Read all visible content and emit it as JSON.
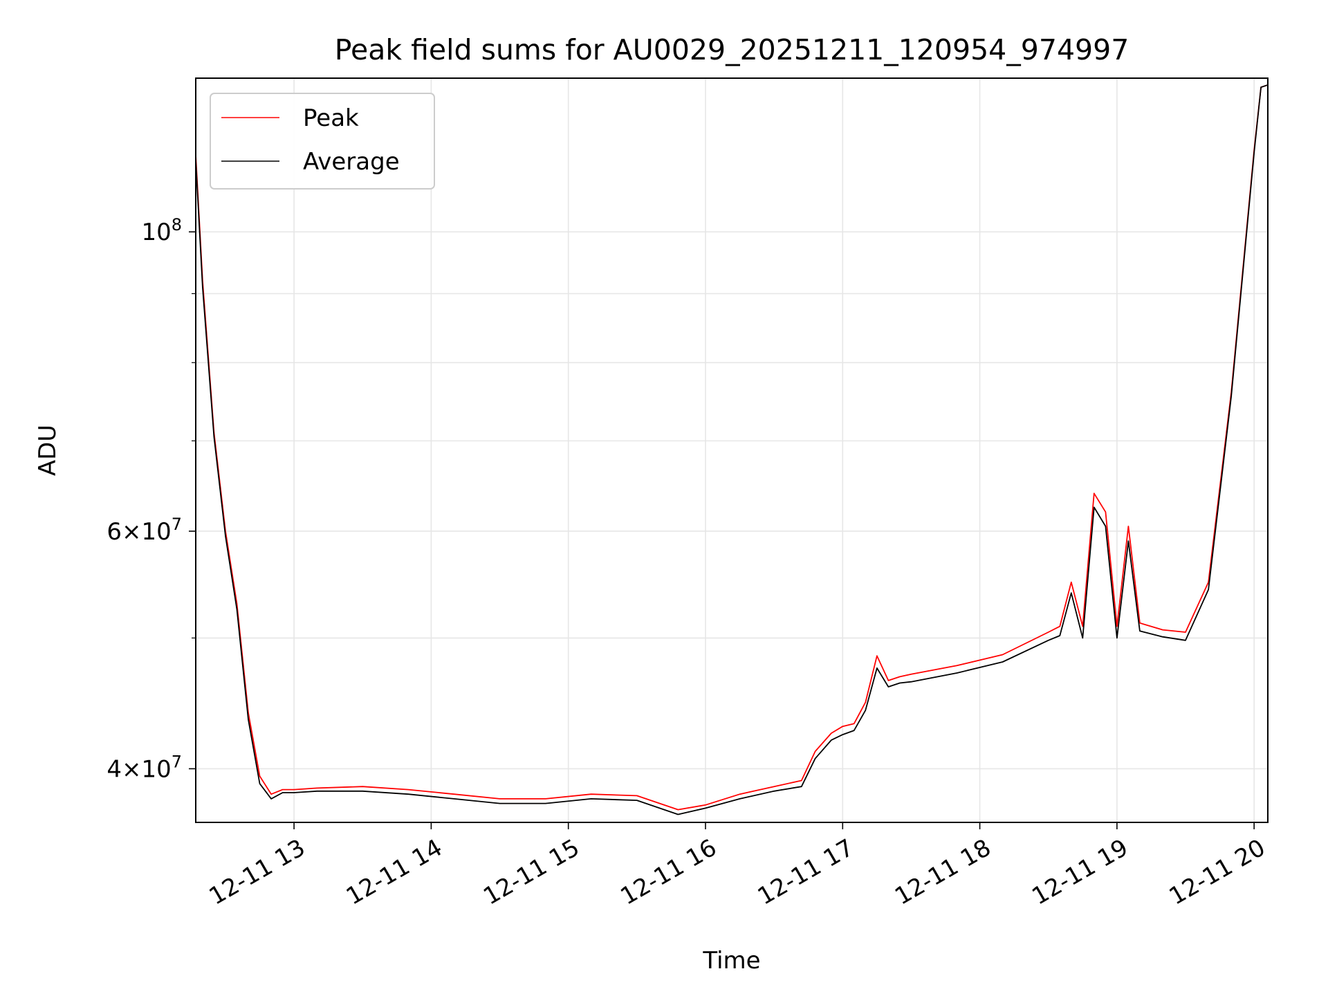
{
  "chart_data": {
    "type": "line",
    "title": "Peak field sums for AU0029_20251211_120954_974997",
    "xlabel": "Time",
    "ylabel": "ADU",
    "yscale": "log",
    "xlim": [
      "2025-12-11 12:17",
      "2025-12-11 20:06"
    ],
    "ylim": [
      36500000,
      130000000
    ],
    "grid": true,
    "legend_position": "top-left",
    "x_ticks": [
      {
        "value": "2025-12-11 13:00",
        "label": "12-11 13"
      },
      {
        "value": "2025-12-11 14:00",
        "label": "12-11 14"
      },
      {
        "value": "2025-12-11 15:00",
        "label": "12-11 15"
      },
      {
        "value": "2025-12-11 16:00",
        "label": "12-11 16"
      },
      {
        "value": "2025-12-11 17:00",
        "label": "12-11 17"
      },
      {
        "value": "2025-12-11 18:00",
        "label": "12-11 18"
      },
      {
        "value": "2025-12-11 19:00",
        "label": "12-11 19"
      },
      {
        "value": "2025-12-11 20:00",
        "label": "12-11 20"
      }
    ],
    "y_ticks": [
      {
        "value": 40000000,
        "base": "4",
        "exp": "7"
      },
      {
        "value": 60000000,
        "base": "6",
        "exp": "7"
      },
      {
        "value": 100000000,
        "base": "10",
        "exp": "8"
      }
    ],
    "y_minor_ticks": [
      50000000,
      70000000,
      80000000,
      90000000
    ],
    "series": [
      {
        "name": "Peak",
        "color": "#ff0000",
        "x": [
          "2025-12-11 12:17",
          "2025-12-11 12:20",
          "2025-12-11 12:25",
          "2025-12-11 12:30",
          "2025-12-11 12:35",
          "2025-12-11 12:40",
          "2025-12-11 12:45",
          "2025-12-11 12:50",
          "2025-12-11 12:55",
          "2025-12-11 13:00",
          "2025-12-11 13:10",
          "2025-12-11 13:30",
          "2025-12-11 13:50",
          "2025-12-11 14:10",
          "2025-12-11 14:30",
          "2025-12-11 14:50",
          "2025-12-11 15:10",
          "2025-12-11 15:30",
          "2025-12-11 15:48",
          "2025-12-11 16:00",
          "2025-12-11 16:15",
          "2025-12-11 16:30",
          "2025-12-11 16:42",
          "2025-12-11 16:48",
          "2025-12-11 16:55",
          "2025-12-11 17:00",
          "2025-12-11 17:05",
          "2025-12-11 17:10",
          "2025-12-11 17:15",
          "2025-12-11 17:20",
          "2025-12-11 17:25",
          "2025-12-11 17:30",
          "2025-12-11 17:50",
          "2025-12-11 18:10",
          "2025-12-11 18:30",
          "2025-12-11 18:35",
          "2025-12-11 18:40",
          "2025-12-11 18:45",
          "2025-12-11 18:50",
          "2025-12-11 18:55",
          "2025-12-11 19:00",
          "2025-12-11 19:05",
          "2025-12-11 19:10",
          "2025-12-11 19:20",
          "2025-12-11 19:30",
          "2025-12-11 19:40",
          "2025-12-11 19:50",
          "2025-12-11 20:00",
          "2025-12-11 20:03",
          "2025-12-11 20:06"
        ],
        "y": [
          114000000,
          92000000,
          71000000,
          60000000,
          53000000,
          44000000,
          39500000,
          38300000,
          38600000,
          38600000,
          38700000,
          38800000,
          38600000,
          38300000,
          38000000,
          38000000,
          38300000,
          38200000,
          37300000,
          37600000,
          38300000,
          38800000,
          39200000,
          41200000,
          42500000,
          43000000,
          43200000,
          44800000,
          48500000,
          46500000,
          46800000,
          47000000,
          47700000,
          48600000,
          50500000,
          51000000,
          55000000,
          51000000,
          64000000,
          62000000,
          51000000,
          60500000,
          51300000,
          50700000,
          50500000,
          55000000,
          76000000,
          115000000,
          128000000,
          128500000
        ]
      },
      {
        "name": "Average",
        "color": "#000000",
        "x": [
          "2025-12-11 12:17",
          "2025-12-11 12:20",
          "2025-12-11 12:25",
          "2025-12-11 12:30",
          "2025-12-11 12:35",
          "2025-12-11 12:40",
          "2025-12-11 12:45",
          "2025-12-11 12:50",
          "2025-12-11 12:55",
          "2025-12-11 13:00",
          "2025-12-11 13:10",
          "2025-12-11 13:30",
          "2025-12-11 13:50",
          "2025-12-11 14:10",
          "2025-12-11 14:30",
          "2025-12-11 14:50",
          "2025-12-11 15:10",
          "2025-12-11 15:30",
          "2025-12-11 15:48",
          "2025-12-11 16:00",
          "2025-12-11 16:15",
          "2025-12-11 16:30",
          "2025-12-11 16:42",
          "2025-12-11 16:48",
          "2025-12-11 16:55",
          "2025-12-11 17:00",
          "2025-12-11 17:05",
          "2025-12-11 17:10",
          "2025-12-11 17:15",
          "2025-12-11 17:20",
          "2025-12-11 17:25",
          "2025-12-11 17:30",
          "2025-12-11 17:50",
          "2025-12-11 18:10",
          "2025-12-11 18:30",
          "2025-12-11 18:35",
          "2025-12-11 18:40",
          "2025-12-11 18:45",
          "2025-12-11 18:50",
          "2025-12-11 18:55",
          "2025-12-11 19:00",
          "2025-12-11 19:05",
          "2025-12-11 19:10",
          "2025-12-11 19:20",
          "2025-12-11 19:30",
          "2025-12-11 19:40",
          "2025-12-11 19:50",
          "2025-12-11 20:00",
          "2025-12-11 20:03",
          "2025-12-11 20:06"
        ],
        "y": [
          113000000,
          91000000,
          70500000,
          59500000,
          52500000,
          43500000,
          39000000,
          38000000,
          38400000,
          38400000,
          38500000,
          38500000,
          38300000,
          38000000,
          37700000,
          37700000,
          38000000,
          37900000,
          37000000,
          37400000,
          38000000,
          38500000,
          38800000,
          40700000,
          42000000,
          42400000,
          42700000,
          44200000,
          47500000,
          46000000,
          46300000,
          46400000,
          47100000,
          48000000,
          49800000,
          50200000,
          54000000,
          50000000,
          62500000,
          60500000,
          50000000,
          59000000,
          50600000,
          50100000,
          49800000,
          54300000,
          75500000,
          114500000,
          128000000,
          128500000
        ]
      }
    ]
  }
}
